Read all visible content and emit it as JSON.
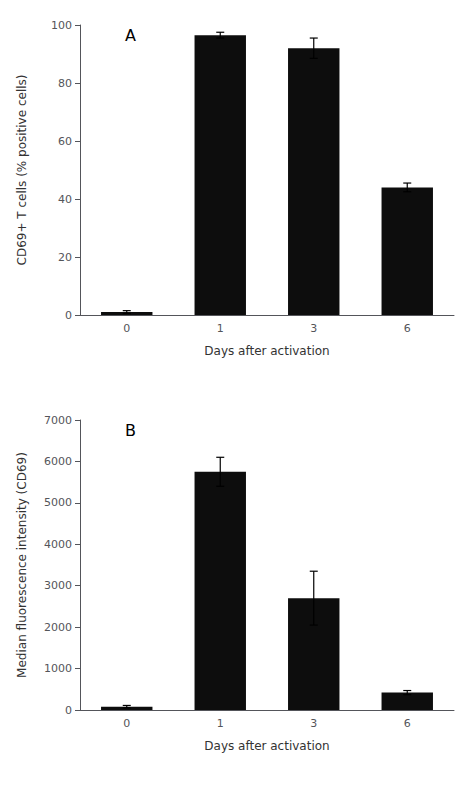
{
  "chart_data": [
    {
      "type": "bar",
      "categories": [
        "0",
        "1",
        "3",
        "6"
      ],
      "values": [
        1.0,
        96.5,
        92.0,
        44.0
      ],
      "errors": [
        0.5,
        1.0,
        3.5,
        1.5
      ],
      "ylabel": "CD69+ T cells (% positive cells)",
      "xlabel": "Days after activation",
      "ylim": [
        0,
        100
      ],
      "yticks": [
        0,
        20,
        40,
        60,
        80,
        100
      ],
      "annotation": "A",
      "color": "#0d0d0d"
    },
    {
      "type": "bar",
      "categories": [
        "0",
        "1",
        "3",
        "6"
      ],
      "values": [
        80,
        5750,
        2700,
        420
      ],
      "errors": [
        30,
        350,
        650,
        50
      ],
      "ylabel": "Median fluorescence intensity (CD69)",
      "xlabel": "Days after activation",
      "ylim": [
        0,
        7000
      ],
      "yticks": [
        0,
        1000,
        2000,
        3000,
        4000,
        5000,
        6000,
        7000
      ],
      "annotation": "B",
      "color": "#0d0d0d"
    }
  ]
}
